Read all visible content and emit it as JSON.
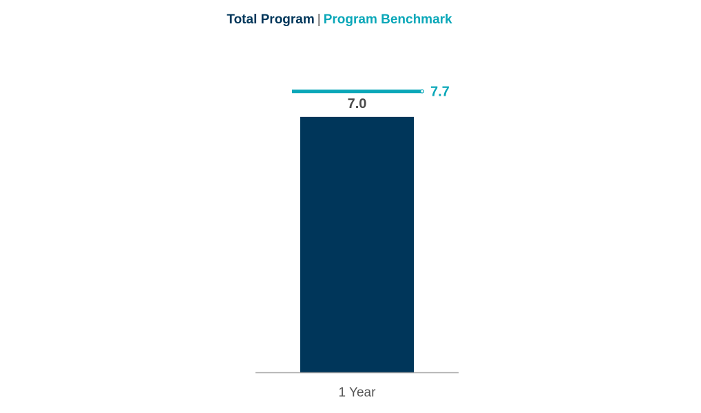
{
  "legend": {
    "primary_label": "Total Program",
    "separator": "|",
    "benchmark_label": "Program Benchmark"
  },
  "colors": {
    "primary": "#00365a",
    "benchmark": "#0aa7b8",
    "axis": "#a6a6a6",
    "label": "#4a4a4a"
  },
  "chart_data": {
    "type": "bar",
    "categories": [
      "1 Year"
    ],
    "series": [
      {
        "name": "Total Program",
        "values": [
          7.0
        ]
      },
      {
        "name": "Program Benchmark",
        "values": [
          7.7
        ]
      }
    ],
    "value_labels": [
      "7.0"
    ],
    "benchmark_labels": [
      "7.7"
    ],
    "ylim": [
      0,
      8.6
    ],
    "grid": false,
    "legend_position": "top-center"
  }
}
